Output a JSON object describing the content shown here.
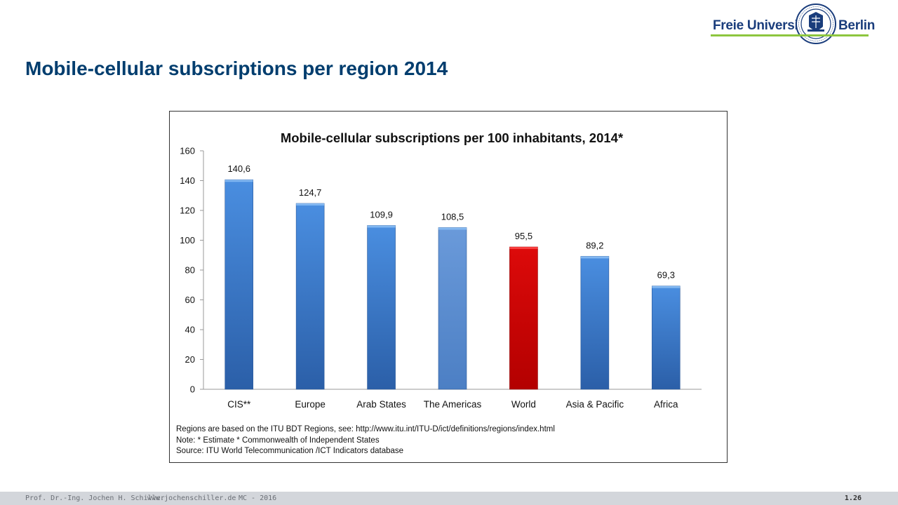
{
  "header": {
    "logo_left": "Freie Universität",
    "logo_right": "Berlin",
    "title": "Mobile-cellular subscriptions per region 2014"
  },
  "colors": {
    "bar_blue": "#3d7fd0",
    "bar_blue_light": "#5b8fd0",
    "bar_red": "#cc0000",
    "title": "#003d6e",
    "logo_green": "#8dc63f",
    "logo_blue": "#1a3d7c"
  },
  "chart_data": {
    "type": "bar",
    "title": "Mobile-cellular subscriptions per 100 inhabitants, 2014*",
    "categories": [
      "CIS**",
      "Europe",
      "Arab States",
      "The Americas",
      "World",
      "Asia & Pacific",
      "Africa"
    ],
    "values": [
      140.6,
      124.7,
      109.9,
      108.5,
      95.5,
      89.2,
      69.3
    ],
    "value_labels": [
      "140,6",
      "124,7",
      "109,9",
      "108,5",
      "95,5",
      "89,2",
      "69,3"
    ],
    "bar_colors": [
      "#3d7fd0",
      "#3d7fd0",
      "#3d7fd0",
      "#5b8fd0",
      "#cc0000",
      "#3d7fd0",
      "#3d7fd0"
    ],
    "ylim": [
      0,
      160
    ],
    "yticks": [
      0,
      20,
      40,
      60,
      80,
      100,
      120,
      140,
      160
    ],
    "xlabel": "",
    "ylabel": "",
    "grid": false,
    "legend": false
  },
  "notes": [
    "Regions are based on the ITU BDT Regions, see: http://www.itu.int/ITU-D/ict/definitions/regions/index.html",
    "Note: * Estimate * Commonwealth of Independent States",
    "Source:  ITU World Telecommunication /ICT Indicators database"
  ],
  "footer": {
    "author": "Prof. Dr.-Ing. Jochen H. Schiller",
    "website": "www.jochenschiller.de",
    "course": "MC - 2016",
    "page": "1.26"
  }
}
